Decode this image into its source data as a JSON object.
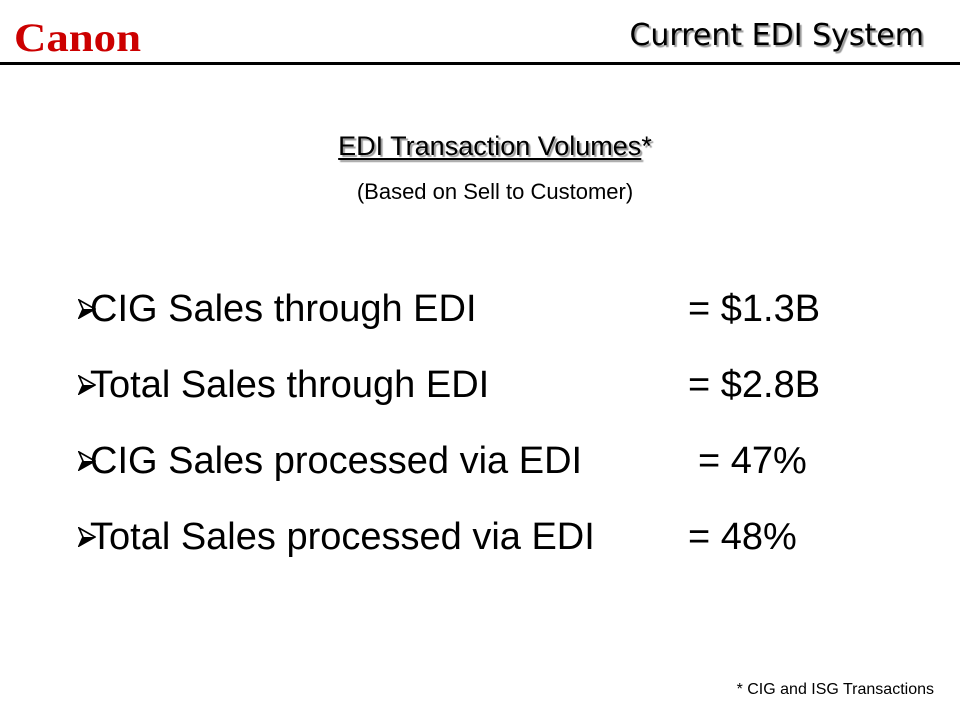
{
  "logo_text": "Canon",
  "header": {
    "title": "Current EDI System"
  },
  "section": {
    "title": "EDI Transaction Volumes",
    "title_marker": "*",
    "caption": "(Based on Sell to Customer)"
  },
  "bullets": [
    {
      "label": "CIG Sales through EDI",
      "value": "= $1.3B"
    },
    {
      "label": "Total Sales through EDI",
      "value": "= $2.8B"
    },
    {
      "label": "CIG Sales processed via EDI",
      "value": "= 47%"
    },
    {
      "label": "Total Sales processed via EDI",
      "value": "= 48%"
    }
  ],
  "footnote": "* CIG and ISG Transactions",
  "colors": {
    "brand": "#cc0000",
    "text": "#000000",
    "shadow": "#9a9a9a"
  },
  "icons": {
    "bullet": "arrow-bullet-icon"
  }
}
